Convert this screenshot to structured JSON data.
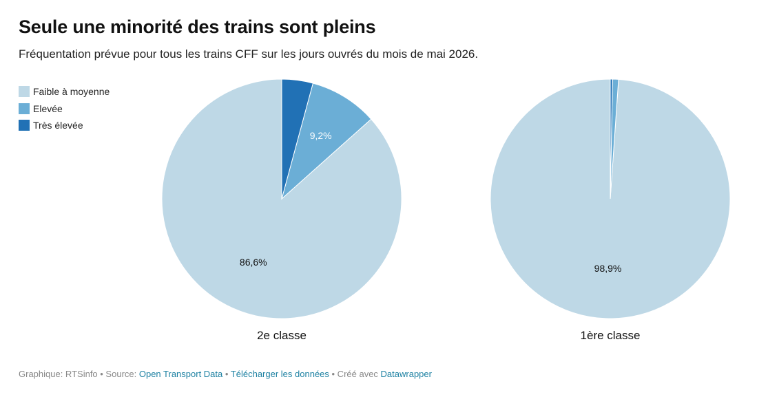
{
  "header": {
    "title": "Seule une minorité des trains sont pleins",
    "subtitle": "Fréquentation prévue pour tous les trains CFF sur les jours ouvrés du mois de mai 2026."
  },
  "legend": [
    {
      "label": "Faible à moyenne",
      "color": "#bed8e6"
    },
    {
      "label": "Elevée",
      "color": "#6baed6"
    },
    {
      "label": "Très élevée",
      "color": "#2171b5"
    }
  ],
  "chart_data": [
    {
      "type": "pie",
      "name": "2e classe",
      "categories": [
        "Faible à moyenne",
        "Elevée",
        "Très élevée"
      ],
      "values": [
        86.6,
        9.2,
        4.2
      ],
      "data_labels": [
        "86,6%",
        "9,2%",
        ""
      ]
    },
    {
      "type": "pie",
      "name": "1ère classe",
      "categories": [
        "Faible à moyenne",
        "Elevée",
        "Très élevée"
      ],
      "values": [
        98.9,
        0.8,
        0.3
      ],
      "data_labels": [
        "98,9%",
        "",
        ""
      ]
    }
  ],
  "footer": {
    "prefix": "Graphique: RTSinfo • Source: ",
    "source_link": "Open Transport Data",
    "sep1": " • ",
    "download_link": "Télécharger les données",
    "sep2": " • Créé avec ",
    "tool_link": "Datawrapper"
  }
}
